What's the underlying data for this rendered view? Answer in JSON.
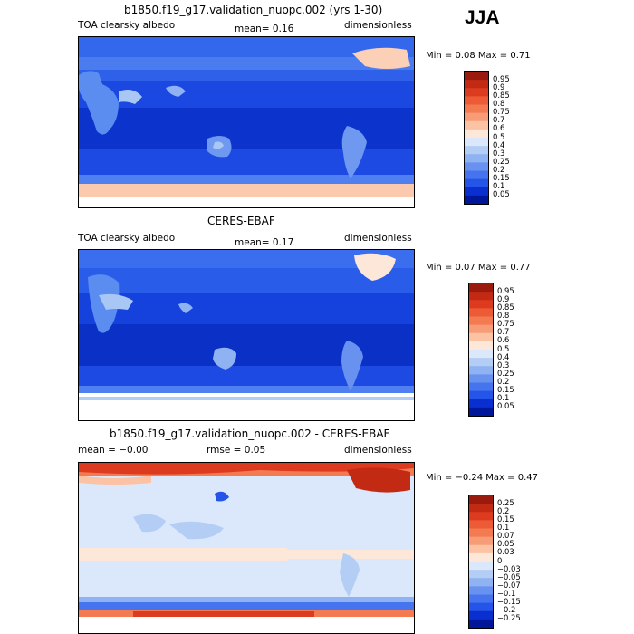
{
  "season": "JJA",
  "panels": [
    {
      "title": "b1850.f19_g17.validation_nuopc.002 (yrs 1-30)",
      "left": "TOA clearsky albedo",
      "middle": "mean=    0.16",
      "right": "dimensionless",
      "minmax": "Min =    0.08 Max =    0.71",
      "cbar_labels": [
        "0.95",
        "0.9",
        "0.85",
        "0.8",
        "0.75",
        "0.7",
        "0.6",
        "0.5",
        "0.4",
        "0.3",
        "0.25",
        "0.2",
        "0.15",
        "0.1",
        "0.05"
      ],
      "cbar_colors": [
        "#9b1a0e",
        "#c32a14",
        "#dd3b1f",
        "#ec5a36",
        "#f47a52",
        "#f89c78",
        "#fbc2a4",
        "#fde7d8",
        "#dbe8fb",
        "#b3cdf5",
        "#8fb2f2",
        "#6992f0",
        "#4574ee",
        "#2454e8",
        "#0a2fd1",
        "#00179a"
      ]
    },
    {
      "title": "CERES-EBAF",
      "left": "TOA clearsky albedo",
      "middle": "mean=    0.17",
      "right": "dimensionless",
      "minmax": "Min =    0.07 Max =    0.77",
      "cbar_labels": [
        "0.95",
        "0.9",
        "0.85",
        "0.8",
        "0.75",
        "0.7",
        "0.6",
        "0.5",
        "0.4",
        "0.3",
        "0.25",
        "0.2",
        "0.15",
        "0.1",
        "0.05"
      ],
      "cbar_colors": [
        "#9b1a0e",
        "#c32a14",
        "#dd3b1f",
        "#ec5a36",
        "#f47a52",
        "#f89c78",
        "#fbc2a4",
        "#fde7d8",
        "#dbe8fb",
        "#b3cdf5",
        "#8fb2f2",
        "#6992f0",
        "#4574ee",
        "#2454e8",
        "#0a2fd1",
        "#00179a"
      ]
    },
    {
      "title": "b1850.f19_g17.validation_nuopc.002 - CERES-EBAF",
      "left": "mean =  −0.00",
      "middle": "rmse =   0.05",
      "right": "dimensionless",
      "minmax": "Min =  −0.24 Max =    0.47",
      "cbar_labels": [
        "0.25",
        "0.2",
        "0.15",
        "0.1",
        "0.07",
        "0.05",
        "0.03",
        "0",
        "−0.03",
        "−0.05",
        "−0.07",
        "−0.1",
        "−0.15",
        "−0.2",
        "−0.25"
      ],
      "cbar_colors": [
        "#9b1a0e",
        "#c32a14",
        "#dd3b1f",
        "#ec5a36",
        "#f47a52",
        "#f89c78",
        "#fbc2a4",
        "#fde7d8",
        "#dbe8fb",
        "#b3cdf5",
        "#8fb2f2",
        "#6992f0",
        "#4574ee",
        "#2454e8",
        "#0a2fd1",
        "#00179a"
      ]
    }
  ]
}
